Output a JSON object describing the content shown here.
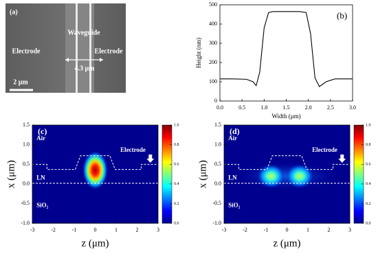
{
  "figure_a": {
    "panel_label": "(a)",
    "waveguide": "Waveguide",
    "electrode_left": "Electrode",
    "electrode_right": "Electrode",
    "gap": "4.3 μm",
    "scale_bar": "2 μm"
  },
  "chart_data": [
    {
      "type": "line",
      "panel_label": "(b)",
      "xlabel": "Width (μm)",
      "ylabel": "Height (nm)",
      "x": [
        0,
        0.3,
        0.6,
        0.75,
        0.82,
        0.9,
        1.0,
        1.1,
        1.2,
        1.5,
        1.8,
        1.95,
        2.05,
        2.15,
        2.25,
        2.4,
        2.6,
        3.0
      ],
      "values": [
        115,
        115,
        113,
        100,
        80,
        150,
        380,
        460,
        465,
        465,
        465,
        460,
        350,
        120,
        75,
        100,
        115,
        115
      ],
      "color": "#000000",
      "xlim": [
        0,
        3
      ],
      "xticks": [
        {
          "value": 0,
          "label": "0.0"
        },
        0.5,
        {
          "value": 1,
          "label": "1.0"
        },
        1.5,
        {
          "value": 2,
          "label": "2.0"
        },
        2.5,
        {
          "value": 3,
          "label": "3.0"
        }
      ],
      "ylim": [
        0,
        500
      ],
      "yticks": [
        0,
        100,
        200,
        300,
        400,
        500
      ]
    },
    {
      "type": "heatmap",
      "panel_label": "(c)",
      "xlabel": "z (μm)",
      "ylabel": "x (μm)",
      "annotations": [
        "Air",
        "LN",
        "SiO₂",
        "Electrode"
      ],
      "xlim": [
        -3,
        3
      ],
      "xticks": [
        -3,
        -2,
        -1,
        0,
        1,
        2,
        3
      ],
      "ylim": [
        -1,
        1.5
      ],
      "yticks": [
        {
          "value": -1,
          "label": "-1.0"
        },
        -0.5,
        {
          "value": 0,
          "label": "0.0"
        },
        0.5,
        {
          "value": 1,
          "label": "1.0"
        },
        1.5
      ],
      "clim": [
        0,
        1
      ],
      "cticks": [
        {
          "value": 0,
          "label": "0.0"
        },
        0.2,
        0.4,
        0.6,
        0.8,
        {
          "value": 1,
          "label": "1.0"
        }
      ]
    },
    {
      "type": "heatmap",
      "panel_label": "(d)",
      "xlabel": "z (μm)",
      "ylabel": "x (μm)",
      "annotations": [
        "Air",
        "LN",
        "SiO₂",
        "Electrode"
      ],
      "xlim": [
        -3,
        3
      ],
      "xticks": [
        -3,
        -2,
        -1,
        0,
        1,
        2,
        3
      ],
      "ylim": [
        -1,
        1.5
      ],
      "yticks": [
        {
          "value": -1,
          "label": "-1.0"
        },
        -0.5,
        {
          "value": 0,
          "label": "0.0"
        },
        0.5,
        {
          "value": 1,
          "label": "1.0"
        },
        1.5
      ],
      "clim": [
        0,
        1
      ],
      "cticks": [
        {
          "value": 0,
          "label": "0.0"
        },
        0.2,
        0.4,
        0.6,
        0.8,
        {
          "value": 1,
          "label": "1.0"
        }
      ]
    }
  ]
}
